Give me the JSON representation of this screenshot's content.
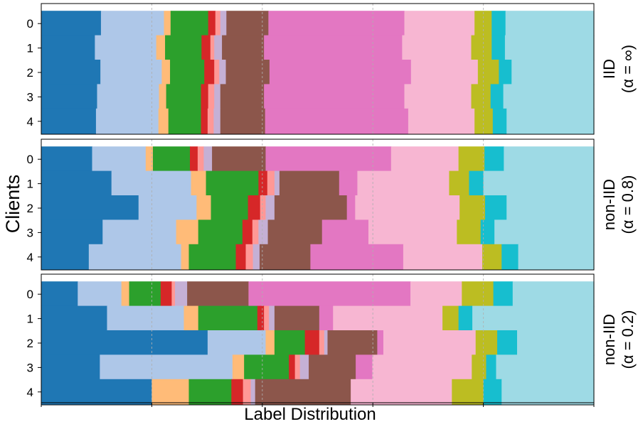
{
  "chart_data": {
    "type": "stacked-horizontal-bar",
    "xlabel": "Label Distribution",
    "ylabel": "Clients",
    "xlim": [
      0,
      1
    ],
    "grid": {
      "vertical": true,
      "style": "dashed",
      "positions": [
        0.2,
        0.4,
        0.6,
        0.8
      ]
    },
    "colors": [
      "#1f77b4",
      "#aec7e8",
      "#ffbb78",
      "#2ca02c",
      "#d62728",
      "#ff9896",
      "#c5b0d5",
      "#8c564b",
      "#e377c2",
      "#f7b6d2",
      "#bcbd22",
      "#17becf",
      "#9edae5"
    ],
    "panels": [
      {
        "label_line1": "IID",
        "label_line2": "(α = ∞)",
        "clients": [
          "0",
          "1",
          "2",
          "3",
          "4"
        ],
        "rows": [
          [
            0.108,
            0.114,
            0.012,
            0.068,
            0.013,
            0.009,
            0.011,
            0.076,
            0.246,
            0.127,
            0.031,
            0.025,
            0.16
          ],
          [
            0.097,
            0.111,
            0.016,
            0.066,
            0.016,
            0.007,
            0.014,
            0.076,
            0.25,
            0.125,
            0.037,
            0.024,
            0.161
          ],
          [
            0.107,
            0.111,
            0.015,
            0.062,
            0.018,
            0.009,
            0.012,
            0.079,
            0.256,
            0.121,
            0.038,
            0.023,
            0.149
          ],
          [
            0.101,
            0.112,
            0.013,
            0.063,
            0.013,
            0.011,
            0.011,
            0.079,
            0.254,
            0.121,
            0.035,
            0.023,
            0.164
          ],
          [
            0.099,
            0.113,
            0.018,
            0.059,
            0.012,
            0.011,
            0.012,
            0.081,
            0.259,
            0.12,
            0.033,
            0.025,
            0.158
          ]
        ]
      },
      {
        "label_line1": "non-IID",
        "label_line2": "(α = 0.8)",
        "clients": [
          "0",
          "1",
          "2",
          "3",
          "4"
        ],
        "rows": [
          [
            0.092,
            0.097,
            0.013,
            0.067,
            0.014,
            0.011,
            0.015,
            0.097,
            0.227,
            0.122,
            0.047,
            0.035,
            0.163
          ],
          [
            0.127,
            0.144,
            0.027,
            0.095,
            0.016,
            0.013,
            0.009,
            0.108,
            0.033,
            0.166,
            0.036,
            0.026,
            0.2
          ],
          [
            0.176,
            0.105,
            0.026,
            0.067,
            0.022,
            0.01,
            0.016,
            0.131,
            0.015,
            0.189,
            0.046,
            0.039,
            0.158
          ],
          [
            0.111,
            0.133,
            0.04,
            0.08,
            0.018,
            0.011,
            0.017,
            0.098,
            0.084,
            0.16,
            0.043,
            0.025,
            0.18
          ],
          [
            0.086,
            0.167,
            0.014,
            0.085,
            0.018,
            0.013,
            0.012,
            0.092,
            0.168,
            0.143,
            0.035,
            0.03,
            0.137
          ]
        ]
      },
      {
        "label_line1": "non-IID",
        "label_line2": "(α = 0.2)",
        "clients": [
          "0",
          "1",
          "2",
          "3",
          "4"
        ],
        "rows": [
          [
            0.066,
            0.079,
            0.014,
            0.057,
            0.02,
            0.006,
            0.022,
            0.111,
            0.293,
            0.093,
            0.057,
            0.035,
            0.147
          ],
          [
            0.119,
            0.139,
            0.026,
            0.107,
            0.012,
            0.009,
            0.01,
            0.081,
            0.025,
            0.198,
            0.029,
            0.025,
            0.22
          ],
          [
            0.301,
            0.105,
            0.016,
            0.055,
            0.026,
            0.009,
            0.006,
            0.09,
            0.011,
            0.167,
            0.039,
            0.036,
            0.139
          ],
          [
            0.106,
            0.24,
            0.021,
            0.081,
            0.011,
            0.009,
            0.016,
            0.085,
            0.03,
            0.18,
            0.026,
            0.018,
            0.177
          ],
          [
            0.2,
            0.0,
            0.067,
            0.077,
            0.021,
            0.014,
            0.008,
            0.173,
            0.0,
            0.183,
            0.057,
            0.033,
            0.167
          ]
        ]
      }
    ]
  }
}
